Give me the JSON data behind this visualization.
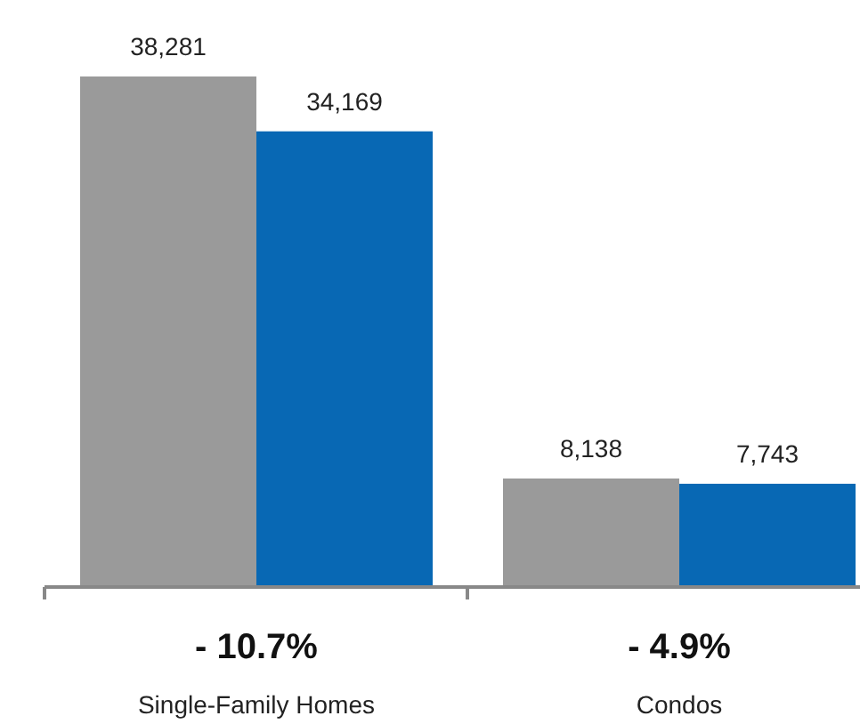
{
  "chart_data": {
    "type": "bar",
    "categories": [
      "Single-Family Homes",
      "Condos"
    ],
    "series": [
      {
        "color": "#9a9a9a",
        "values": [
          38281,
          8138
        ],
        "value_labels": [
          "38,281",
          "8,138"
        ]
      },
      {
        "color": "#0868b4",
        "values": [
          34169,
          7743
        ],
        "value_labels": [
          "34,169",
          "7,743"
        ]
      }
    ],
    "annotations": [
      "- 10.7%",
      "- 4.9%"
    ]
  }
}
